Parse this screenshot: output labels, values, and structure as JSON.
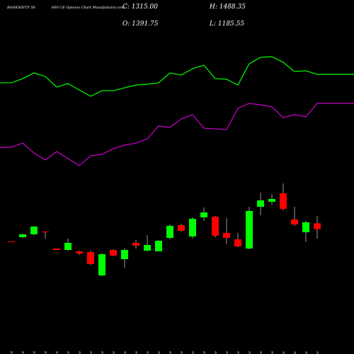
{
  "chart_data": {
    "type": "candlestick",
    "title": "BANKNIFTY 58",
    "subtitle": "600 CE Options Chart MunafaSutra.com",
    "header": {
      "close": "C: 1315.00",
      "open": "O: 1391.75",
      "high": "H: 1488.35",
      "low": "L: 1185.55"
    },
    "categories": [
      "27 Oct",
      "28 Oct",
      "29 Oct",
      "30 Oct",
      "31 Oct",
      "03 Nov",
      "04 Nov",
      "06 Nov",
      "07 Nov",
      "10 Nov",
      "11 Nov",
      "12 Nov",
      "13 Nov",
      "14 Nov",
      "17 Nov",
      "18 Nov",
      "19 Nov",
      "20 Nov",
      "21 Nov",
      "24 Nov",
      "25 Nov",
      "26 Nov",
      "27 Nov",
      "28 Nov",
      "01 Dec",
      "02 Dec",
      "03 Dec",
      "04 Dec"
    ],
    "ohlc": [
      [
        1149,
        1149,
        1139,
        1139
      ],
      [
        1206,
        1253,
        1196,
        1244
      ],
      [
        1244,
        1357,
        1234,
        1348
      ],
      [
        1281,
        1281,
        1187,
        1272
      ],
      [
        1054,
        1054,
        1035,
        1035
      ],
      [
        1035,
        1187,
        1026,
        1130
      ],
      [
        1016,
        1026,
        969,
        988
      ],
      [
        1007,
        1026,
        836,
        846
      ],
      [
        694,
        988,
        685,
        978
      ],
      [
        1035,
        1045,
        950,
        959
      ],
      [
        912,
        1064,
        798,
        1035
      ],
      [
        1130,
        1168,
        1054,
        1092
      ],
      [
        1026,
        1234,
        1016,
        1101
      ],
      [
        1016,
        1168,
        1016,
        1158
      ],
      [
        1196,
        1376,
        1177,
        1357
      ],
      [
        1367,
        1386,
        1281,
        1291
      ],
      [
        1215,
        1471,
        1187,
        1452
      ],
      [
        1471,
        1604,
        1424,
        1537
      ],
      [
        1480,
        1490,
        1206,
        1225
      ],
      [
        1263,
        1461,
        1111,
        1196
      ],
      [
        1177,
        1263,
        1073,
        1083
      ],
      [
        1054,
        1613,
        1045,
        1556
      ],
      [
        1613,
        1802,
        1499,
        1698
      ],
      [
        1679,
        1784,
        1641,
        1717
      ],
      [
        1793,
        1926,
        1566,
        1585
      ],
      [
        1443,
        1613,
        1357,
        1376
      ],
      [
        1272,
        1424,
        1139,
        1405
      ],
      [
        1391.75,
        1488.35,
        1185.55,
        1315.0
      ]
    ],
    "up_color": "#00ff00",
    "down_color": "#ff0000",
    "series": [
      {
        "color": "#00ff00",
        "values": [
          3271,
          3327,
          3403,
          3356,
          3214,
          3261,
          3176,
          3091,
          3166,
          3166,
          3204,
          3242,
          3252,
          3271,
          3403,
          3375,
          3460,
          3507,
          3327,
          3318,
          3242,
          3526,
          3612,
          3621,
          3545,
          3422,
          3432,
          3384
        ]
      },
      {
        "color": "#cc00cc",
        "values": [
          2409,
          2465,
          2333,
          2238,
          2352,
          2257,
          2162,
          2295,
          2314,
          2390,
          2437,
          2465,
          2522,
          2693,
          2674,
          2788,
          2844,
          2664,
          2655,
          2645,
          2930,
          2996,
          2977,
          2949,
          2806,
          2844,
          2816,
          2996
        ]
      }
    ],
    "ylim": [
      590,
      4000
    ]
  }
}
